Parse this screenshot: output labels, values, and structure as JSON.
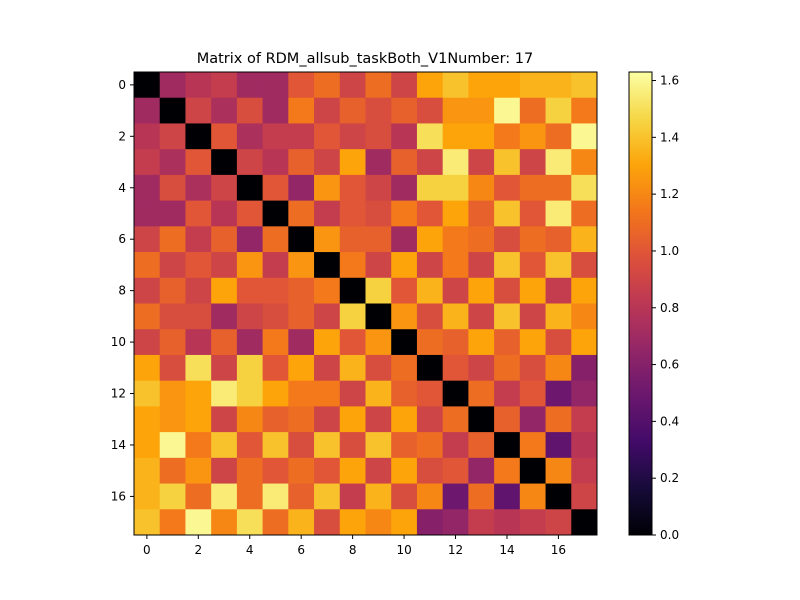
{
  "chart_data": {
    "type": "heatmap",
    "title": "Matrix of RDM_allsub_taskBoth_V1Number: 17",
    "xlabel": "",
    "ylabel": "",
    "x_ticks": [
      0,
      2,
      4,
      6,
      8,
      10,
      12,
      14,
      16
    ],
    "y_ticks": [
      0,
      2,
      4,
      6,
      8,
      10,
      12,
      14,
      16
    ],
    "colormap": "inferno",
    "vmin": 0.0,
    "vmax": 1.63,
    "colorbar_ticks": [
      0.0,
      0.2,
      0.4,
      0.6,
      0.8,
      1.0,
      1.2,
      1.4,
      1.6
    ],
    "colorbar_tick_labels": [
      "0.0",
      "0.2",
      "0.4",
      "0.6",
      "0.8",
      "1.0",
      "1.2",
      "1.4",
      "1.6"
    ],
    "values": [
      [
        0.0,
        0.7,
        0.8,
        0.85,
        0.7,
        0.7,
        1.0,
        1.1,
        0.9,
        1.1,
        0.9,
        1.3,
        1.4,
        1.3,
        1.3,
        1.35,
        1.35,
        1.4
      ],
      [
        0.7,
        0.0,
        0.9,
        0.75,
        0.95,
        0.7,
        1.15,
        0.9,
        1.05,
        0.95,
        1.05,
        0.95,
        1.25,
        1.25,
        1.6,
        1.1,
        1.45,
        1.15
      ],
      [
        0.8,
        0.9,
        0.0,
        1.0,
        0.75,
        0.85,
        0.85,
        1.0,
        0.9,
        0.95,
        0.8,
        1.5,
        1.3,
        1.3,
        1.15,
        1.25,
        1.1,
        1.6
      ],
      [
        0.85,
        0.75,
        1.0,
        0.0,
        0.9,
        0.8,
        1.05,
        0.9,
        1.3,
        0.7,
        1.05,
        0.9,
        1.55,
        0.9,
        1.4,
        0.9,
        1.55,
        1.2
      ],
      [
        0.7,
        0.95,
        0.75,
        0.9,
        0.0,
        1.0,
        0.65,
        1.25,
        1.0,
        0.9,
        0.7,
        1.45,
        1.45,
        1.2,
        1.0,
        1.1,
        1.1,
        1.5
      ],
      [
        0.7,
        0.7,
        1.0,
        0.8,
        1.0,
        0.0,
        1.1,
        0.85,
        1.0,
        0.95,
        1.15,
        1.0,
        1.3,
        1.05,
        1.4,
        1.0,
        1.55,
        1.1
      ],
      [
        0.9,
        1.1,
        0.85,
        1.05,
        0.65,
        1.1,
        0.0,
        1.25,
        1.05,
        1.05,
        0.7,
        1.3,
        1.15,
        1.1,
        0.95,
        1.1,
        1.05,
        1.35
      ],
      [
        1.1,
        0.9,
        1.0,
        0.9,
        1.25,
        0.85,
        1.25,
        0.0,
        1.15,
        0.9,
        1.3,
        0.9,
        1.15,
        0.9,
        1.4,
        1.0,
        1.4,
        0.95
      ],
      [
        0.9,
        1.05,
        0.9,
        1.3,
        1.0,
        1.0,
        1.05,
        1.15,
        0.0,
        1.45,
        1.0,
        1.35,
        0.9,
        1.3,
        0.95,
        1.3,
        0.85,
        1.3
      ],
      [
        1.1,
        0.95,
        0.95,
        0.7,
        0.9,
        0.95,
        1.05,
        0.9,
        1.45,
        0.0,
        1.25,
        0.95,
        1.35,
        0.9,
        1.4,
        0.9,
        1.35,
        1.2
      ],
      [
        0.9,
        1.05,
        0.8,
        1.05,
        0.7,
        1.15,
        0.7,
        1.3,
        1.0,
        1.25,
        0.0,
        1.1,
        1.05,
        1.3,
        1.05,
        1.3,
        0.95,
        1.3
      ],
      [
        1.3,
        0.95,
        1.5,
        0.9,
        1.45,
        1.0,
        1.3,
        0.9,
        1.35,
        0.95,
        1.1,
        0.0,
        1.0,
        0.9,
        1.1,
        0.95,
        1.2,
        0.6
      ],
      [
        1.4,
        1.25,
        1.3,
        1.55,
        1.45,
        1.3,
        1.15,
        1.15,
        0.9,
        1.35,
        1.05,
        1.0,
        0.0,
        1.1,
        0.85,
        1.0,
        0.5,
        0.65
      ],
      [
        1.3,
        1.25,
        1.3,
        0.9,
        1.2,
        1.05,
        1.1,
        0.9,
        1.3,
        0.9,
        1.3,
        0.9,
        1.1,
        0.0,
        1.05,
        0.65,
        1.1,
        0.85
      ],
      [
        1.3,
        1.6,
        1.15,
        1.4,
        1.0,
        1.4,
        0.95,
        1.4,
        0.95,
        1.4,
        1.05,
        1.1,
        0.85,
        1.05,
        0.0,
        1.15,
        0.45,
        0.8
      ],
      [
        1.35,
        1.1,
        1.25,
        0.9,
        1.1,
        1.0,
        1.1,
        1.0,
        1.3,
        0.9,
        1.3,
        0.95,
        1.0,
        0.65,
        1.15,
        0.0,
        1.2,
        0.85
      ],
      [
        1.35,
        1.45,
        1.1,
        1.55,
        1.1,
        1.55,
        1.05,
        1.4,
        0.85,
        1.35,
        0.95,
        1.2,
        0.5,
        1.1,
        0.45,
        1.2,
        0.0,
        0.9
      ],
      [
        1.4,
        1.15,
        1.6,
        1.2,
        1.5,
        1.1,
        1.35,
        0.95,
        1.3,
        1.2,
        1.3,
        0.6,
        0.65,
        0.85,
        0.8,
        0.85,
        0.9,
        0.0
      ]
    ]
  }
}
